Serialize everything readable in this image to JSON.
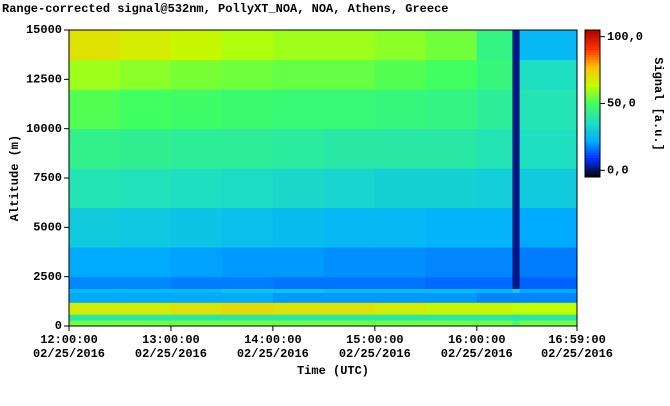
{
  "chart_data": {
    "type": "heatmap",
    "title": "Range-corrected signal@532nm, PollyXT_NOA, NOA, Athens, Greece",
    "xlabel": "Time (UTC)",
    "ylabel": "Altitude (m)",
    "colorbar_label": "Signal [a.u.]",
    "xlim": [
      12,
      16.9833
    ],
    "ylim": [
      0,
      15000
    ],
    "xticks": [
      {
        "value": 12,
        "label": "12:00:00 02/25/2016"
      },
      {
        "value": 13,
        "label": "13:00:00 02/25/2016"
      },
      {
        "value": 14,
        "label": "14:00:00 02/25/2016"
      },
      {
        "value": 15,
        "label": "15:00:00 02/25/2016"
      },
      {
        "value": 16,
        "label": "16:00:00 02/25/2016"
      },
      {
        "value": 16.9833,
        "label": "16:59:00 02/25/2016"
      }
    ],
    "yticks": [
      0,
      2500,
      5000,
      7500,
      10000,
      12500,
      15000
    ],
    "clim": [
      -5,
      105
    ],
    "cticks": [
      {
        "value": 0,
        "label": "0,0"
      },
      {
        "value": 50,
        "label": "50,0"
      },
      {
        "value": 100,
        "label": "100,0"
      }
    ],
    "colorscale": [
      "#000000",
      "#0030ff",
      "#00b0ff",
      "#20e0c0",
      "#40ff60",
      "#c0ff00",
      "#ffc000",
      "#ff3000",
      "#b00000"
    ],
    "xbins": [
      12,
      12.5,
      13,
      13.5,
      14,
      14.5,
      15,
      15.5,
      16,
      16.35,
      16.42,
      16.9833
    ],
    "ybins": [
      0,
      300,
      600,
      1200,
      1700,
      1900,
      2500,
      4000,
      6000,
      8000,
      10000,
      12000,
      13500,
      15000
    ],
    "z": [
      [
        55,
        55,
        55,
        55,
        55,
        55,
        55,
        55,
        55,
        50,
        55
      ],
      [
        40,
        40,
        40,
        40,
        40,
        40,
        40,
        40,
        40,
        38,
        40
      ],
      [
        68,
        68,
        70,
        72,
        70,
        70,
        68,
        66,
        66,
        64,
        64
      ],
      [
        22,
        22,
        22,
        22,
        20,
        20,
        20,
        20,
        18,
        18,
        18
      ],
      [
        26,
        26,
        26,
        28,
        28,
        26,
        26,
        26,
        24,
        30,
        22
      ],
      [
        18,
        18,
        17,
        17,
        16,
        16,
        16,
        15,
        15,
        2,
        14
      ],
      [
        22,
        22,
        21,
        20,
        20,
        19,
        19,
        18,
        18,
        2,
        17
      ],
      [
        30,
        29,
        28,
        27,
        26,
        25,
        25,
        24,
        24,
        2,
        22
      ],
      [
        38,
        37,
        36,
        35,
        34,
        33,
        32,
        32,
        31,
        2,
        30
      ],
      [
        44,
        43,
        42,
        42,
        41,
        40,
        40,
        40,
        38,
        2,
        36
      ],
      [
        52,
        50,
        49,
        48,
        47,
        47,
        46,
        45,
        42,
        2,
        38
      ],
      [
        60,
        58,
        56,
        55,
        54,
        54,
        52,
        50,
        46,
        2,
        36
      ],
      [
        70,
        68,
        65,
        62,
        60,
        60,
        58,
        55,
        45,
        2,
        25
      ]
    ]
  }
}
